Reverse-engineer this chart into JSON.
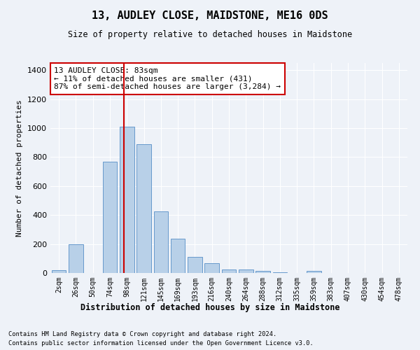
{
  "title": "13, AUDLEY CLOSE, MAIDSTONE, ME16 0DS",
  "subtitle": "Size of property relative to detached houses in Maidstone",
  "xlabel": "Distribution of detached houses by size in Maidstone",
  "ylabel": "Number of detached properties",
  "bar_color": "#b8d0e8",
  "bar_edge_color": "#6699cc",
  "background_color": "#eef2f8",
  "grid_color": "#ffffff",
  "categories": [
    "2sqm",
    "26sqm",
    "50sqm",
    "74sqm",
    "98sqm",
    "121sqm",
    "145sqm",
    "169sqm",
    "193sqm",
    "216sqm",
    "240sqm",
    "264sqm",
    "288sqm",
    "312sqm",
    "335sqm",
    "359sqm",
    "383sqm",
    "407sqm",
    "430sqm",
    "454sqm",
    "478sqm"
  ],
  "values": [
    20,
    200,
    0,
    770,
    1010,
    890,
    425,
    235,
    110,
    70,
    25,
    25,
    15,
    5,
    0,
    15,
    0,
    0,
    0,
    0,
    0
  ],
  "ylim": [
    0,
    1450
  ],
  "yticks": [
    0,
    200,
    400,
    600,
    800,
    1000,
    1200,
    1400
  ],
  "vline_x": 3.82,
  "vline_color": "#cc0000",
  "annotation_text": "13 AUDLEY CLOSE: 83sqm\n← 11% of detached houses are smaller (431)\n87% of semi-detached houses are larger (3,284) →",
  "annotation_box_color": "#ffffff",
  "annotation_box_edge_color": "#cc0000",
  "footnote1": "Contains HM Land Registry data © Crown copyright and database right 2024.",
  "footnote2": "Contains public sector information licensed under the Open Government Licence v3.0."
}
